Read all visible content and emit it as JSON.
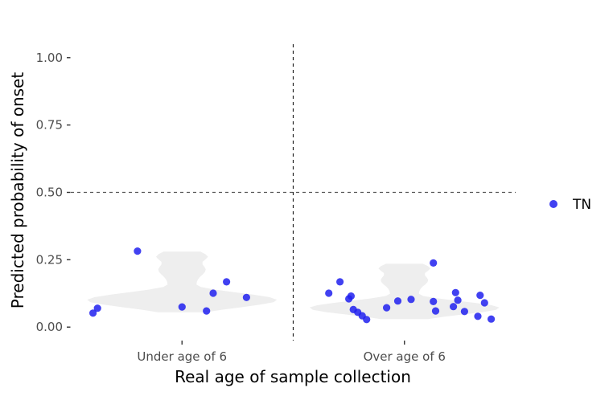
{
  "chart_data": {
    "type": "scatter",
    "xlabel": "Real age of sample collection",
    "ylabel": "Predicted probability of onset",
    "categories": [
      "Under age of 6",
      "Over age of 6"
    ],
    "ylim": [
      -0.05,
      1.05
    ],
    "yticks": [
      0.0,
      0.25,
      0.5,
      0.75,
      1.0
    ],
    "ytick_labels": [
      "0.00",
      "0.25",
      "0.50",
      "0.75",
      "1.00"
    ],
    "reference_lines": {
      "horizontal_y": 0.5,
      "vertical_between_categories": true
    },
    "grid": false,
    "legend": {
      "position": "right",
      "entries": [
        {
          "label": "TN",
          "color": "#2020ee"
        }
      ]
    },
    "violin_color": "#eeeeee",
    "violins": [
      {
        "category": "Under age of 6",
        "ymin": 0.055,
        "ymax": 0.28
      },
      {
        "category": "Over age of 6",
        "ymin": 0.03,
        "ymax": 0.235
      }
    ],
    "series": [
      {
        "name": "TN",
        "color": "#2020ee",
        "points": [
          {
            "category": "Under age of 6",
            "jitter": -0.4,
            "y": 0.052
          },
          {
            "category": "Under age of 6",
            "jitter": -0.38,
            "y": 0.07
          },
          {
            "category": "Under age of 6",
            "jitter": -0.2,
            "y": 0.282
          },
          {
            "category": "Under age of 6",
            "jitter": 0.0,
            "y": 0.075
          },
          {
            "category": "Under age of 6",
            "jitter": 0.11,
            "y": 0.06
          },
          {
            "category": "Under age of 6",
            "jitter": 0.14,
            "y": 0.126
          },
          {
            "category": "Under age of 6",
            "jitter": 0.2,
            "y": 0.168
          },
          {
            "category": "Under age of 6",
            "jitter": 0.29,
            "y": 0.11
          },
          {
            "category": "Over age of 6",
            "jitter": -0.34,
            "y": 0.126
          },
          {
            "category": "Over age of 6",
            "jitter": -0.29,
            "y": 0.168
          },
          {
            "category": "Over age of 6",
            "jitter": -0.25,
            "y": 0.105
          },
          {
            "category": "Over age of 6",
            "jitter": -0.24,
            "y": 0.115
          },
          {
            "category": "Over age of 6",
            "jitter": -0.23,
            "y": 0.065
          },
          {
            "category": "Over age of 6",
            "jitter": -0.21,
            "y": 0.055
          },
          {
            "category": "Over age of 6",
            "jitter": -0.19,
            "y": 0.042
          },
          {
            "category": "Over age of 6",
            "jitter": -0.17,
            "y": 0.028
          },
          {
            "category": "Over age of 6",
            "jitter": -0.08,
            "y": 0.072
          },
          {
            "category": "Over age of 6",
            "jitter": -0.03,
            "y": 0.097
          },
          {
            "category": "Over age of 6",
            "jitter": 0.03,
            "y": 0.103
          },
          {
            "category": "Over age of 6",
            "jitter": 0.13,
            "y": 0.095
          },
          {
            "category": "Over age of 6",
            "jitter": 0.13,
            "y": 0.238
          },
          {
            "category": "Over age of 6",
            "jitter": 0.14,
            "y": 0.06
          },
          {
            "category": "Over age of 6",
            "jitter": 0.22,
            "y": 0.076
          },
          {
            "category": "Over age of 6",
            "jitter": 0.23,
            "y": 0.128
          },
          {
            "category": "Over age of 6",
            "jitter": 0.24,
            "y": 0.1
          },
          {
            "category": "Over age of 6",
            "jitter": 0.27,
            "y": 0.058
          },
          {
            "category": "Over age of 6",
            "jitter": 0.33,
            "y": 0.04
          },
          {
            "category": "Over age of 6",
            "jitter": 0.34,
            "y": 0.118
          },
          {
            "category": "Over age of 6",
            "jitter": 0.36,
            "y": 0.09
          },
          {
            "category": "Over age of 6",
            "jitter": 0.39,
            "y": 0.03
          }
        ]
      }
    ]
  }
}
